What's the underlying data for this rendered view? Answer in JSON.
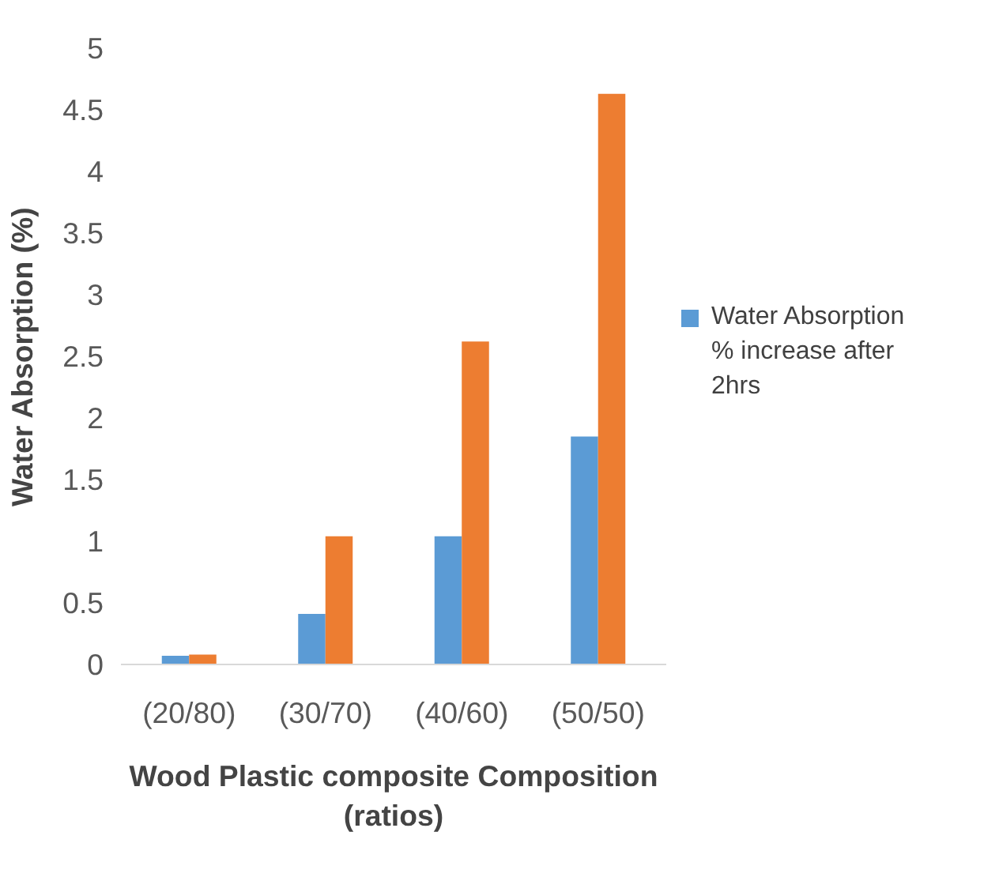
{
  "chart_data": {
    "type": "bar",
    "xlabel": "Wood Plastic composite Composition (ratios)",
    "ylabel": "Water Absorption (%)",
    "categories": [
      "(20/80)",
      "(30/70)",
      "(40/60)",
      "(50/50)"
    ],
    "series": [
      {
        "name": "Water Absorption  % increase after 2hrs",
        "color": "#5b9bd5",
        "values": [
          0.07,
          0.41,
          1.04,
          1.85
        ]
      },
      {
        "color": "#ed7d31",
        "values": [
          0.08,
          1.04,
          2.62,
          4.63
        ]
      }
    ],
    "ylim": [
      0,
      5
    ],
    "yticks": [
      0,
      0.5,
      1,
      1.5,
      2,
      2.5,
      3,
      3.5,
      4,
      4.5,
      5
    ],
    "grid": false,
    "legend": "right"
  }
}
